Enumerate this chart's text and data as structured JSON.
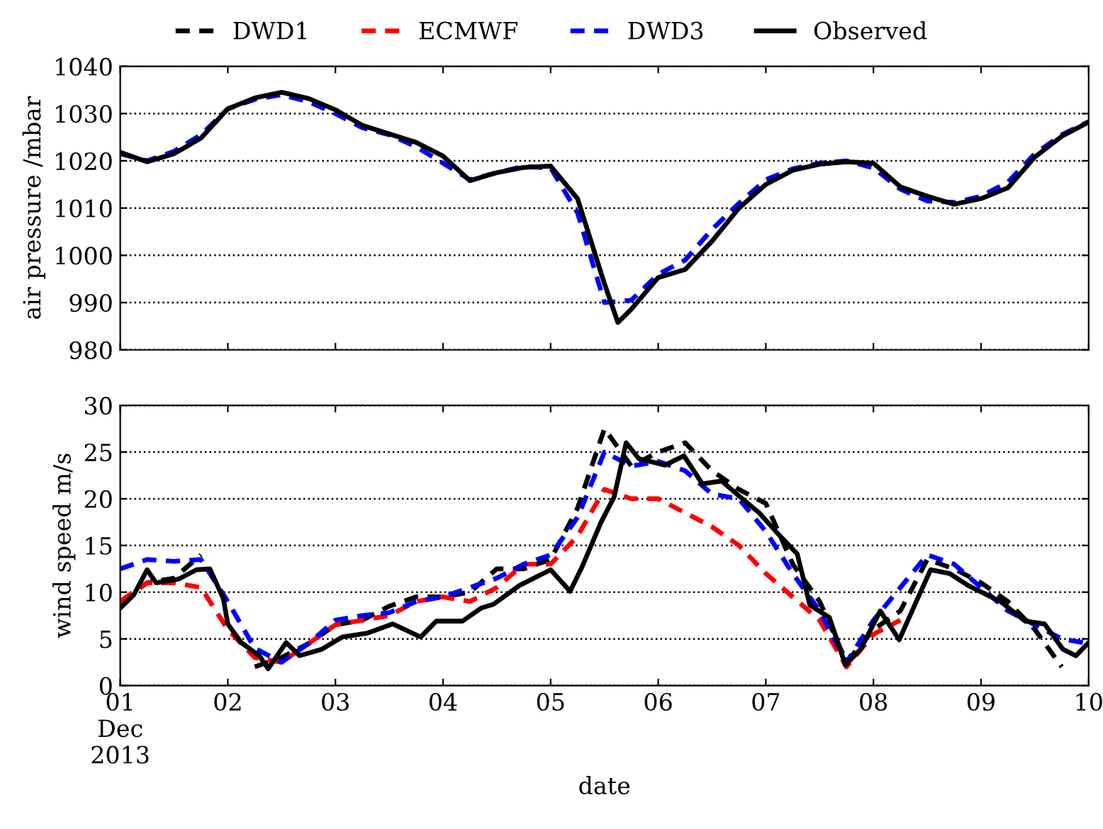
{
  "chart_data": [
    {
      "type": "line",
      "ylabel": "air pressure /mbar",
      "grid": "y",
      "tick_labels": "y",
      "line_style": "dashed",
      "marker": "none",
      "x": [
        "2013-12-01T00:00",
        "2013-12-01T06:00",
        "2013-12-01T12:00",
        "2013-12-01T18:00",
        "2013-12-02T00:00",
        "2013-12-02T06:00",
        "2013-12-02T12:00",
        "2013-12-02T18:00",
        "2013-12-03T00:00",
        "2013-12-03T06:00",
        "2013-12-03T12:00",
        "2013-12-03T18:00",
        "2013-12-04T00:00",
        "2013-12-04T06:00",
        "2013-12-04T12:00",
        "2013-12-04T18:00",
        "2013-12-05T00:00",
        "2013-12-05T06:00",
        "2013-12-05T12:00",
        "2013-12-05T18:00",
        "2013-12-06T00:00",
        "2013-12-06T06:00",
        "2013-12-06T12:00",
        "2013-12-06T18:00",
        "2013-12-07T00:00",
        "2013-12-07T06:00",
        "2013-12-07T12:00",
        "2013-12-07T18:00",
        "2013-12-08T00:00",
        "2013-12-08T06:00",
        "2013-12-08T12:00",
        "2013-12-08T18:00",
        "2013-12-09T00:00",
        "2013-12-09T06:00",
        "2013-12-09T12:00",
        "2013-12-09T18:00",
        "2013-12-10T00:00"
      ],
      "xlim": [
        "2013-12-01",
        "2013-12-10"
      ],
      "xticks": [
        {
          "value": "2013-12-01",
          "label": null
        },
        {
          "value": "2013-12-02",
          "label": null
        },
        {
          "value": "2013-12-03",
          "label": null
        },
        {
          "value": "2013-12-04",
          "label": null
        },
        {
          "value": "2013-12-05",
          "label": null
        },
        {
          "value": "2013-12-06",
          "label": null
        },
        {
          "value": "2013-12-07",
          "label": null
        },
        {
          "value": "2013-12-08",
          "label": null
        },
        {
          "value": "2013-12-09",
          "label": null
        },
        {
          "value": "2013-12-10",
          "label": null
        }
      ],
      "ylim": [
        980,
        1040
      ],
      "yticks": [
        980,
        990,
        1000,
        1010,
        1020,
        1030,
        1040
      ],
      "series": [
        {
          "color": "#0000ff",
          "values": [
            1021.5,
            1020,
            1022,
            1025.5,
            1031,
            1033,
            1034,
            1032.5,
            1030,
            1027,
            1025.5,
            1023,
            1019.5,
            1016,
            1017.5,
            1018.8,
            1018.5,
            1009,
            990,
            990.5,
            996,
            999,
            1005.5,
            1011,
            1016,
            1018.3,
            1019.5,
            1020,
            1018.5,
            1014,
            1011.5,
            1011.2,
            1012.5,
            1015.5,
            1021.5,
            1025.5,
            1028.3
          ]
        },
        {
          "color": "#000000",
          "line_style": "solid",
          "x": [
            "2013-12-01T00:00",
            "2013-12-01T06:00",
            "2013-12-01T12:00",
            "2013-12-01T18:00",
            "2013-12-02T00:00",
            "2013-12-02T06:00",
            "2013-12-02T12:00",
            "2013-12-02T18:00",
            "2013-12-03T00:00",
            "2013-12-03T06:00",
            "2013-12-03T12:00",
            "2013-12-03T18:00",
            "2013-12-04T00:00",
            "2013-12-04T06:00",
            "2013-12-04T12:00",
            "2013-12-04T18:00",
            "2013-12-05T00:00",
            "2013-12-05T06:00",
            "2013-12-05T12:00",
            "2013-12-05T15:00",
            "2013-12-05T18:00",
            "2013-12-06T00:00",
            "2013-12-06T06:00",
            "2013-12-06T12:00",
            "2013-12-06T18:00",
            "2013-12-07T00:00",
            "2013-12-07T06:00",
            "2013-12-07T12:00",
            "2013-12-07T18:00",
            "2013-12-08T00:00",
            "2013-12-08T06:00",
            "2013-12-08T12:00",
            "2013-12-08T18:00",
            "2013-12-09T00:00",
            "2013-12-09T06:00",
            "2013-12-09T12:00",
            "2013-12-09T18:00",
            "2013-12-10T00:00"
          ],
          "values": [
            1021.8,
            1019.8,
            1021.5,
            1024.8,
            1031,
            1033.3,
            1034.5,
            1033.2,
            1030.8,
            1027.5,
            1025.7,
            1023.9,
            1021,
            1015.8,
            1017.5,
            1018.6,
            1018.9,
            1012,
            994,
            985.8,
            988.6,
            995.3,
            997,
            1003,
            1010,
            1015,
            1018,
            1019.3,
            1019.8,
            1019.5,
            1014.5,
            1012.5,
            1010.8,
            1012,
            1014.3,
            1020.8,
            1025.2,
            1028.2
          ]
        }
      ]
    },
    {
      "type": "line",
      "ylabel": "wind speed m/s",
      "xlabel": "date",
      "legend": "top",
      "grid": "y",
      "line_style": "dashed",
      "marker": "none",
      "x": [
        "2013-12-01T00:00",
        "2013-12-01T06:00",
        "2013-12-01T12:00",
        "2013-12-01T18:00",
        "2013-12-02T00:00",
        "2013-12-02T06:00",
        "2013-12-02T12:00",
        "2013-12-02T18:00",
        "2013-12-03T00:00",
        "2013-12-03T06:00",
        "2013-12-03T12:00",
        "2013-12-03T18:00",
        "2013-12-04T00:00",
        "2013-12-04T06:00",
        "2013-12-04T12:00",
        "2013-12-04T18:00",
        "2013-12-05T00:00",
        "2013-12-05T06:00",
        "2013-12-05T12:00",
        "2013-12-05T18:00",
        "2013-12-06T00:00",
        "2013-12-06T06:00",
        "2013-12-06T12:00",
        "2013-12-06T18:00",
        "2013-12-07T00:00",
        "2013-12-07T06:00",
        "2013-12-07T12:00",
        "2013-12-07T18:00",
        "2013-12-08T00:00",
        "2013-12-08T06:00",
        "2013-12-08T12:00",
        "2013-12-08T18:00",
        "2013-12-09T00:00",
        "2013-12-09T06:00",
        "2013-12-09T12:00",
        "2013-12-09T18:00",
        "2013-12-10T00:00"
      ],
      "xlim": [
        "2013-12-01",
        "2013-12-10"
      ],
      "xticks": [
        {
          "value": "2013-12-01",
          "label": "01\nDec\n2013"
        },
        {
          "value": "2013-12-02",
          "label": "02"
        },
        {
          "value": "2013-12-03",
          "label": "03"
        },
        {
          "value": "2013-12-04",
          "label": "04"
        },
        {
          "value": "2013-12-05",
          "label": "05"
        },
        {
          "value": "2013-12-06",
          "label": "06"
        },
        {
          "value": "2013-12-07",
          "label": "07"
        },
        {
          "value": "2013-12-08",
          "label": "08"
        },
        {
          "value": "2013-12-09",
          "label": "09"
        },
        {
          "value": "2013-12-10",
          "label": "10"
        }
      ],
      "ylim": [
        0,
        30
      ],
      "yticks": [
        0,
        5,
        10,
        15,
        20,
        25,
        30
      ],
      "series": [
        {
          "name": "DWD1",
          "color": "#000000",
          "values": [
            9,
            11,
            11.5,
            14,
            null,
            2,
            3,
            4.5,
            6.5,
            7,
            8.5,
            9.5,
            9.5,
            10,
            12.5,
            12.5,
            13.5,
            19,
            27.5,
            23.5,
            25,
            26,
            23,
            21,
            19.5,
            13,
            9,
            2.5,
            6,
            8,
            13.5,
            12.5,
            11,
            9,
            6,
            2,
            null
          ]
        },
        {
          "name": "ECMWF",
          "color": "#ff0000",
          "values": [
            9,
            11,
            11,
            10.5,
            6,
            3,
            2.5,
            4.5,
            6.5,
            7,
            7.5,
            9,
            9.5,
            9,
            10.5,
            13,
            13,
            16,
            21,
            20,
            20,
            18.5,
            17,
            15,
            12,
            9.5,
            7,
            2,
            5.5,
            7,
            null,
            null,
            null,
            null,
            null,
            null,
            null
          ]
        },
        {
          "name": "DWD3",
          "color": "#0000ff",
          "values": [
            12.5,
            13.5,
            13.3,
            13.5,
            9,
            4,
            2.5,
            4.5,
            7,
            7.5,
            7.8,
            9,
            9.5,
            10.5,
            11.5,
            13,
            14,
            18,
            25,
            23.5,
            24,
            23,
            20.5,
            20,
            16.5,
            12,
            8,
            2.5,
            7,
            10.5,
            14,
            13,
            10.5,
            8,
            6.5,
            5,
            4.5
          ]
        },
        {
          "name": "Observed",
          "color": "#000000",
          "line_style": "solid",
          "x": [
            "2013-12-01T00:00",
            "2013-12-01T03:00",
            "2013-12-01T06:00",
            "2013-12-01T08:00",
            "2013-12-01T13:00",
            "2013-12-01T17:00",
            "2013-12-01T20:00",
            "2013-12-01T23:00",
            "2013-12-02T00:00",
            "2013-12-02T03:00",
            "2013-12-02T07:00",
            "2013-12-02T09:00",
            "2013-12-02T13:00",
            "2013-12-02T16:00",
            "2013-12-02T21:00",
            "2013-12-03T01:30",
            "2013-12-03T07:00",
            "2013-12-03T12:45",
            "2013-12-03T19:00",
            "2013-12-03T22:30",
            "2013-12-04T04:20",
            "2013-12-04T08:30",
            "2013-12-04T11:15",
            "2013-12-04T17:00",
            "2013-12-05T00:00",
            "2013-12-05T04:20",
            "2013-12-05T07:00",
            "2013-12-05T11:15",
            "2013-12-05T14:10",
            "2013-12-05T16:50",
            "2013-12-05T19:40",
            "2013-12-06T01:30",
            "2013-12-06T05:45",
            "2013-12-06T09:50",
            "2013-12-06T14:10",
            "2013-12-06T18:15",
            "2013-12-06T22:30",
            "2013-12-07T03:00",
            "2013-12-07T07:00",
            "2013-12-07T09:50",
            "2013-12-07T14:10",
            "2013-12-07T17:45",
            "2013-12-07T21:10",
            "2013-12-08T01:30",
            "2013-12-08T05:45",
            "2013-12-08T09:50",
            "2013-12-08T12:45",
            "2013-12-08T17:00",
            "2013-12-08T21:10",
            "2013-12-09T04:20",
            "2013-12-09T09:50",
            "2013-12-09T14:10",
            "2013-12-09T18:15",
            "2013-12-09T21:10",
            "2013-12-10T00:00"
          ],
          "values": [
            8.3,
            9.7,
            12.4,
            11,
            11.4,
            12.4,
            12.5,
            9.3,
            6.6,
            4.6,
            3.2,
            1.8,
            4.6,
            3.2,
            3.9,
            5.2,
            5.6,
            6.6,
            5.2,
            6.9,
            6.9,
            8.3,
            8.7,
            10.7,
            12.4,
            10.1,
            12.7,
            17.5,
            20.2,
            26,
            24.3,
            23.6,
            24.6,
            21.6,
            21.9,
            20.2,
            18.5,
            16.1,
            14.1,
            8.6,
            7.3,
            2.2,
            3.9,
            8,
            4.9,
            9.3,
            12.4,
            12,
            10.7,
            9,
            6.9,
            6.6,
            3.9,
            3.2,
            4.6
          ]
        }
      ]
    }
  ]
}
